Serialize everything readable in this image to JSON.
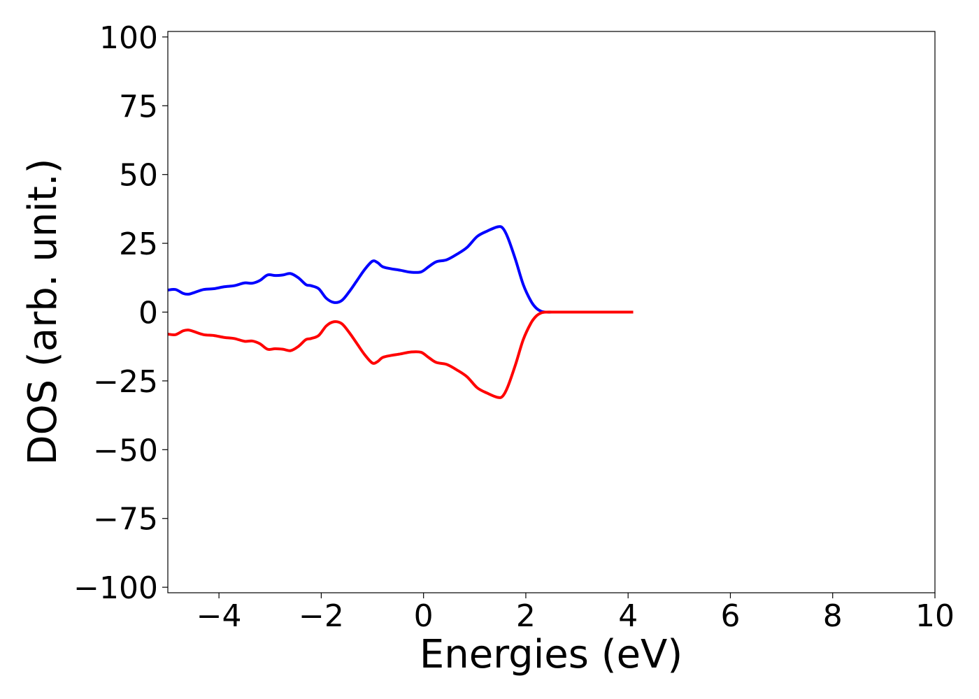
{
  "chart_data": {
    "type": "line",
    "title": "",
    "xlabel": "Energies (eV)",
    "ylabel": "DOS (arb. unit.)",
    "xlim": [
      -5,
      10
    ],
    "ylim": [
      -102,
      102
    ],
    "xticks": [
      -4,
      -2,
      0,
      2,
      4,
      6,
      8,
      10
    ],
    "yticks": [
      100,
      75,
      50,
      25,
      0,
      -25,
      -50,
      -75,
      -100
    ],
    "xtick_labels": [
      "−4",
      "−2",
      "0",
      "2",
      "4",
      "6",
      "8",
      "10"
    ],
    "ytick_labels": [
      "100",
      "75",
      "50",
      "25",
      "0",
      "−25",
      "−50",
      "−75",
      "−100"
    ],
    "grid": false,
    "legend": false,
    "series": [
      {
        "color": "#0000ff",
        "x": [
          -5.0,
          -4.85,
          -4.7,
          -4.6,
          -4.5,
          -4.3,
          -4.1,
          -3.9,
          -3.7,
          -3.5,
          -3.35,
          -3.2,
          -3.05,
          -2.9,
          -2.75,
          -2.6,
          -2.45,
          -2.3,
          -2.2,
          -2.05,
          -1.9,
          -1.75,
          -1.6,
          -1.45,
          -1.3,
          -1.15,
          -1.0,
          -0.9,
          -0.8,
          -0.65,
          -0.45,
          -0.25,
          -0.05,
          0.1,
          0.25,
          0.45,
          0.65,
          0.85,
          1.05,
          1.25,
          1.45,
          1.55,
          1.65,
          1.8,
          1.95,
          2.1,
          2.2,
          2.3,
          2.4,
          2.6,
          3.0,
          3.5,
          4.1
        ],
        "y": [
          8.0,
          8.2,
          6.8,
          6.5,
          7.0,
          8.2,
          8.5,
          9.2,
          9.6,
          10.6,
          10.5,
          11.5,
          13.5,
          13.3,
          13.5,
          14.0,
          12.5,
          10.0,
          9.6,
          8.5,
          5.0,
          3.5,
          4.2,
          7.5,
          11.5,
          15.5,
          18.5,
          18.0,
          16.5,
          15.8,
          15.2,
          14.5,
          14.6,
          16.5,
          18.3,
          19.0,
          21.0,
          23.5,
          27.5,
          29.5,
          31.0,
          30.5,
          27.0,
          19.0,
          10.0,
          4.0,
          1.5,
          0.3,
          0.0,
          0.0,
          0.0,
          0.0,
          0.0
        ]
      },
      {
        "color": "#ff0000",
        "x": [
          -5.0,
          -4.85,
          -4.7,
          -4.6,
          -4.5,
          -4.3,
          -4.1,
          -3.9,
          -3.7,
          -3.5,
          -3.35,
          -3.2,
          -3.05,
          -2.9,
          -2.75,
          -2.6,
          -2.45,
          -2.3,
          -2.2,
          -2.05,
          -1.9,
          -1.75,
          -1.6,
          -1.45,
          -1.3,
          -1.15,
          -1.0,
          -0.9,
          -0.8,
          -0.65,
          -0.45,
          -0.25,
          -0.05,
          0.1,
          0.25,
          0.45,
          0.65,
          0.85,
          1.05,
          1.25,
          1.45,
          1.55,
          1.65,
          1.8,
          1.95,
          2.1,
          2.2,
          2.3,
          2.4,
          2.6,
          3.0,
          3.5,
          4.1
        ],
        "y": [
          -8.0,
          -8.2,
          -6.8,
          -6.5,
          -7.0,
          -8.2,
          -8.5,
          -9.2,
          -9.6,
          -10.6,
          -10.5,
          -11.5,
          -13.5,
          -13.3,
          -13.5,
          -14.0,
          -12.5,
          -10.0,
          -9.6,
          -8.5,
          -5.0,
          -3.5,
          -4.2,
          -7.5,
          -11.5,
          -15.5,
          -18.5,
          -18.0,
          -16.5,
          -15.8,
          -15.2,
          -14.5,
          -14.6,
          -16.5,
          -18.3,
          -19.0,
          -21.0,
          -23.5,
          -27.5,
          -29.5,
          -31.0,
          -30.5,
          -27.0,
          -19.0,
          -10.0,
          -4.0,
          -1.5,
          -0.3,
          0.0,
          0.0,
          0.0,
          0.0,
          0.0
        ]
      }
    ]
  }
}
